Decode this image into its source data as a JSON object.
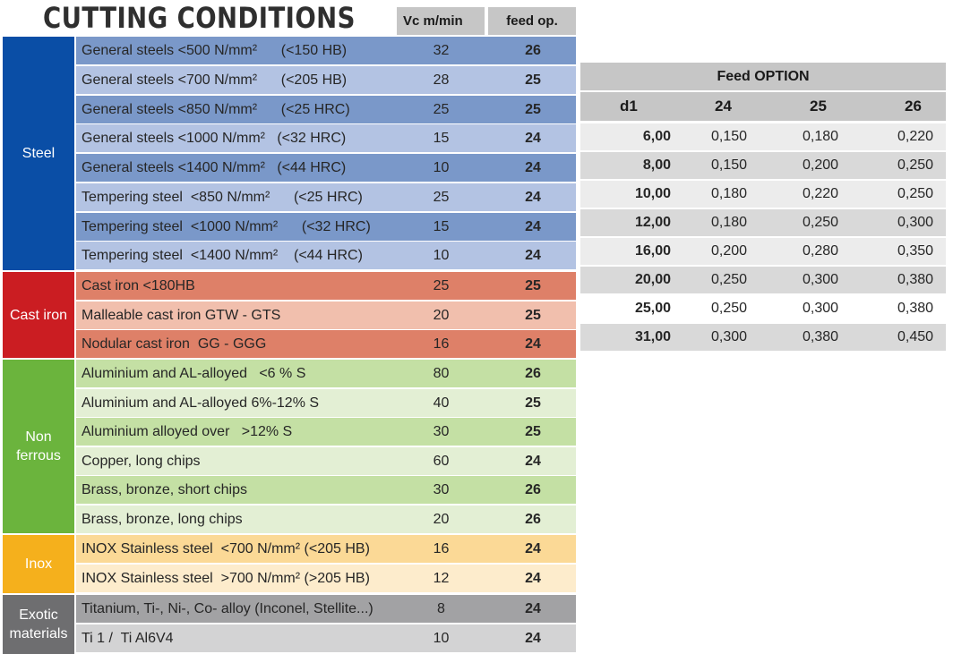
{
  "title": "CUTTING CONDITIONS",
  "headers": {
    "vc": "Vc  m/min",
    "feed": "feed op."
  },
  "categories": [
    {
      "label": "Steel",
      "color": "#0a4ea6"
    },
    {
      "label": "Cast iron",
      "color": "#cb1d22"
    },
    {
      "label": "Non\nferrous",
      "color": "#6bb43d"
    },
    {
      "label": "Inox",
      "color": "#f5b01c"
    },
    {
      "label": "Exotic\nmaterials",
      "color": "#6e6e70"
    }
  ],
  "rows": [
    {
      "material": "General steels <500 N/mm²      (<150 HB)",
      "vc": "32",
      "feed": "26",
      "bg": "#7a98c9"
    },
    {
      "material": "General steels <700 N/mm²      (<205 HB)",
      "vc": "28",
      "feed": "25",
      "bg": "#b3c3e3"
    },
    {
      "material": "General steels <850 N/mm²      (<25 HRC)",
      "vc": "25",
      "feed": "25",
      "bg": "#7a98c9"
    },
    {
      "material": "General steels <1000 N/mm²   (<32 HRC)",
      "vc": "15",
      "feed": "24",
      "bg": "#b3c3e3"
    },
    {
      "material": "General steels <1400 N/mm²   (<44 HRC)",
      "vc": "10",
      "feed": "24",
      "bg": "#7a98c9"
    },
    {
      "material": "Tempering steel  <850 N/mm²      (<25 HRC)",
      "vc": "25",
      "feed": "24",
      "bg": "#b3c3e3"
    },
    {
      "material": "Tempering steel  <1000 N/mm²      (<32 HRC)",
      "vc": "15",
      "feed": "24",
      "bg": "#7a98c9"
    },
    {
      "material": "Tempering steel  <1400 N/mm²    (<44 HRC)",
      "vc": "10",
      "feed": "24",
      "bg": "#b3c3e3"
    },
    {
      "material": "Cast iron <180HB",
      "vc": "25",
      "feed": "25",
      "bg": "#de8068"
    },
    {
      "material": "Malleable cast iron GTW - GTS",
      "vc": "20",
      "feed": "25",
      "bg": "#f1bfad"
    },
    {
      "material": "Nodular cast iron  GG - GGG",
      "vc": "16",
      "feed": "24",
      "bg": "#de8068"
    },
    {
      "material": "Aluminium and AL-alloyed   <6 % S",
      "vc": "80",
      "feed": "26",
      "bg": "#c4e0a4"
    },
    {
      "material": "Aluminium and AL-alloyed 6%-12% S",
      "vc": "40",
      "feed": "25",
      "bg": "#e3efd4"
    },
    {
      "material": "Aluminium alloyed over   >12% S",
      "vc": "30",
      "feed": "25",
      "bg": "#c4e0a4"
    },
    {
      "material": "Copper, long chips",
      "vc": "60",
      "feed": "24",
      "bg": "#e3efd4"
    },
    {
      "material": "Brass, bronze, short chips",
      "vc": "30",
      "feed": "26",
      "bg": "#c4e0a4"
    },
    {
      "material": "Brass, bronze, long chips",
      "vc": "20",
      "feed": "26",
      "bg": "#e3efd4"
    },
    {
      "material": "INOX Stainless steel  <700 N/mm² (<205 HB)",
      "vc": "16",
      "feed": "24",
      "bg": "#fbd996"
    },
    {
      "material": "INOX Stainless steel  >700 N/mm² (>205 HB)",
      "vc": "12",
      "feed": "24",
      "bg": "#fdeccc"
    },
    {
      "material": "Titanium, Ti-, Ni-, Co- alloy (Inconel, Stellite...)",
      "vc": "8",
      "feed": "24",
      "bg": "#a2a2a4"
    },
    {
      "material": "Ti 1 /  Ti Al6V4",
      "vc": "10",
      "feed": "24",
      "bg": "#d3d3d4"
    }
  ],
  "feed_option": {
    "title": "Feed OPTION",
    "header": [
      "d1",
      "24",
      "25",
      "26"
    ],
    "rows": [
      {
        "d1": "6,00",
        "values": [
          "0,150",
          "0,180",
          "0,220"
        ],
        "bg": "#ececec"
      },
      {
        "d1": "8,00",
        "values": [
          "0,150",
          "0,200",
          "0,250"
        ],
        "bg": "#d9d9d9"
      },
      {
        "d1": "10,00",
        "values": [
          "0,180",
          "0,220",
          "0,250"
        ],
        "bg": "#ececec"
      },
      {
        "d1": "12,00",
        "values": [
          "0,180",
          "0,250",
          "0,300"
        ],
        "bg": "#d9d9d9"
      },
      {
        "d1": "16,00",
        "values": [
          "0,200",
          "0,280",
          "0,350"
        ],
        "bg": "#ececec"
      },
      {
        "d1": "20,00",
        "values": [
          "0,250",
          "0,300",
          "0,380"
        ],
        "bg": "#d9d9d9"
      },
      {
        "d1": "25,00",
        "values": [
          "0,250",
          "0,300",
          "0,380"
        ],
        "bg": "#ffffff"
      },
      {
        "d1": "31,00",
        "values": [
          "0,300",
          "0,380",
          "0,450"
        ],
        "bg": "#d9d9d9"
      }
    ]
  }
}
